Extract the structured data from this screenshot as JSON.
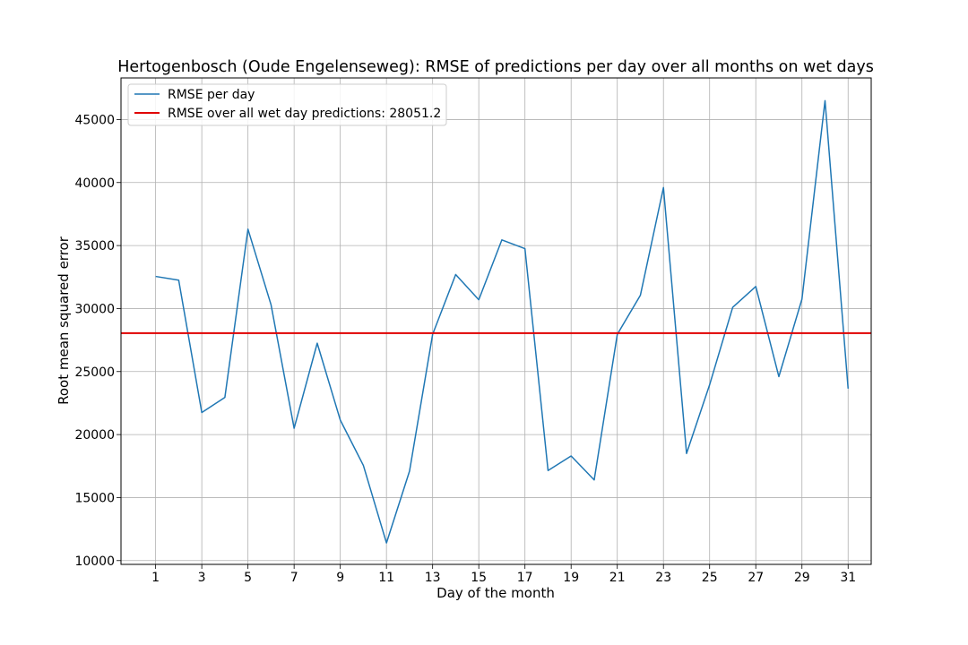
{
  "chart_data": {
    "type": "line",
    "title": "Hertogenbosch (Oude Engelenseweg): RMSE of predictions per day over all months on wet days",
    "xlabel": "Day of the month",
    "ylabel": "Root mean squared error",
    "xlim": [
      -0.5,
      32.0
    ],
    "ylim": [
      9700,
      48300
    ],
    "xticks": [
      1,
      3,
      5,
      7,
      9,
      11,
      13,
      15,
      17,
      19,
      21,
      23,
      25,
      27,
      29,
      31
    ],
    "yticks": [
      10000,
      15000,
      20000,
      25000,
      30000,
      35000,
      40000,
      45000
    ],
    "grid": true,
    "legend_position": "top-left",
    "x": [
      1,
      2,
      3,
      4,
      5,
      6,
      7,
      8,
      9,
      10,
      11,
      12,
      13,
      14,
      15,
      16,
      17,
      18,
      19,
      20,
      21,
      22,
      23,
      24,
      25,
      26,
      27,
      28,
      29,
      30,
      31
    ],
    "series": [
      {
        "name": "RMSE per day",
        "color": "#1f77b4",
        "values": [
          32550,
          32250,
          21750,
          22950,
          36300,
          30300,
          20500,
          27250,
          21150,
          17550,
          11400,
          17100,
          27950,
          32700,
          30700,
          35450,
          34750,
          17150,
          18300,
          16400,
          27950,
          31050,
          39600,
          18500,
          23950,
          30100,
          31750,
          24600,
          30750,
          46500,
          23650
        ]
      }
    ],
    "reference_line": {
      "name": "RMSE over all wet day predictions: 28051.2",
      "color": "#e00000",
      "value": 28051.2
    }
  }
}
